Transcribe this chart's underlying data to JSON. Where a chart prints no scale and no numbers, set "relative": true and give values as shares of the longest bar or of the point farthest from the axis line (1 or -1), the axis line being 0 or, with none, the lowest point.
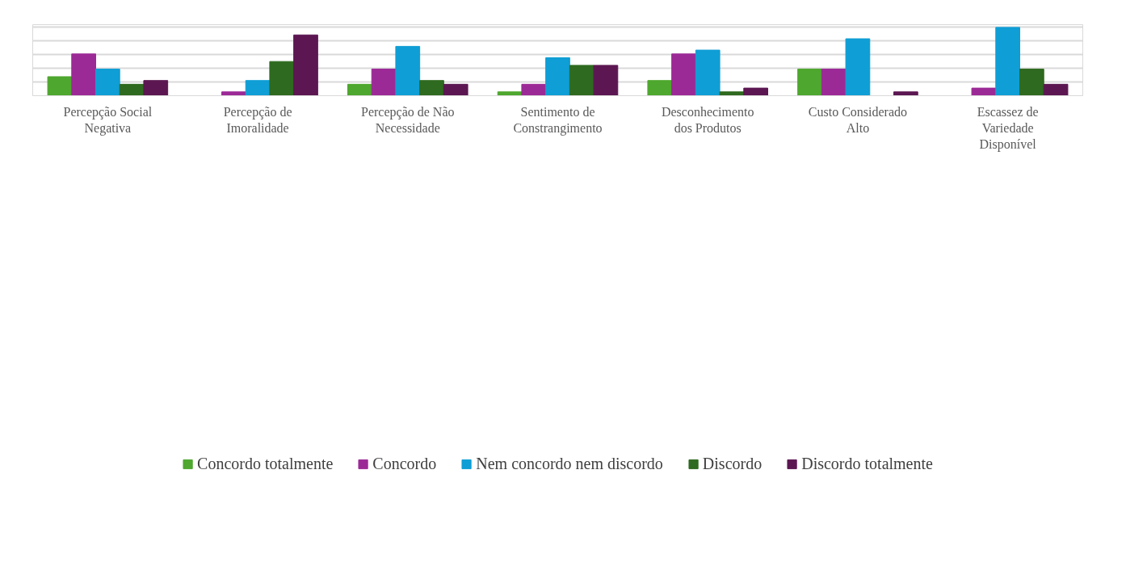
{
  "chart_data": {
    "type": "bar",
    "relative": true,
    "grid": "y",
    "legend": "bottom",
    "categories": [
      "Percepção Social Negativa",
      "Percepção de Imoralidade",
      "Percepção de Não Necessidade",
      "Sentimento de Constrangimento",
      "Desconhecimento dos Produtos",
      "Custo Considerado Alto",
      "Escassez de Variedade Disponível"
    ],
    "series": [
      {
        "name": "Concordo totalmente",
        "color": "#4ea72e",
        "values": [
          0.278,
          0,
          0.167,
          0.056,
          0.222,
          0.389,
          0
        ]
      },
      {
        "name": "Concordo",
        "color": "#9c2a96",
        "values": [
          0.611,
          0.056,
          0.389,
          0.167,
          0.611,
          0.389,
          0.111
        ]
      },
      {
        "name": "Nem concordo nem discordo",
        "color": "#0f9ed5",
        "values": [
          0.389,
          0.222,
          0.722,
          0.556,
          0.667,
          0.833,
          1
        ]
      },
      {
        "name": "Discordo",
        "color": "#2e6a1f",
        "values": [
          0.167,
          0.5,
          0.222,
          0.444,
          0.056,
          0,
          0.389
        ]
      },
      {
        "name": "Discordo totalmente",
        "color": "#5c1752",
        "values": [
          0.222,
          0.889,
          0.167,
          0.444,
          0.111,
          0.056,
          0.167
        ]
      }
    ]
  }
}
